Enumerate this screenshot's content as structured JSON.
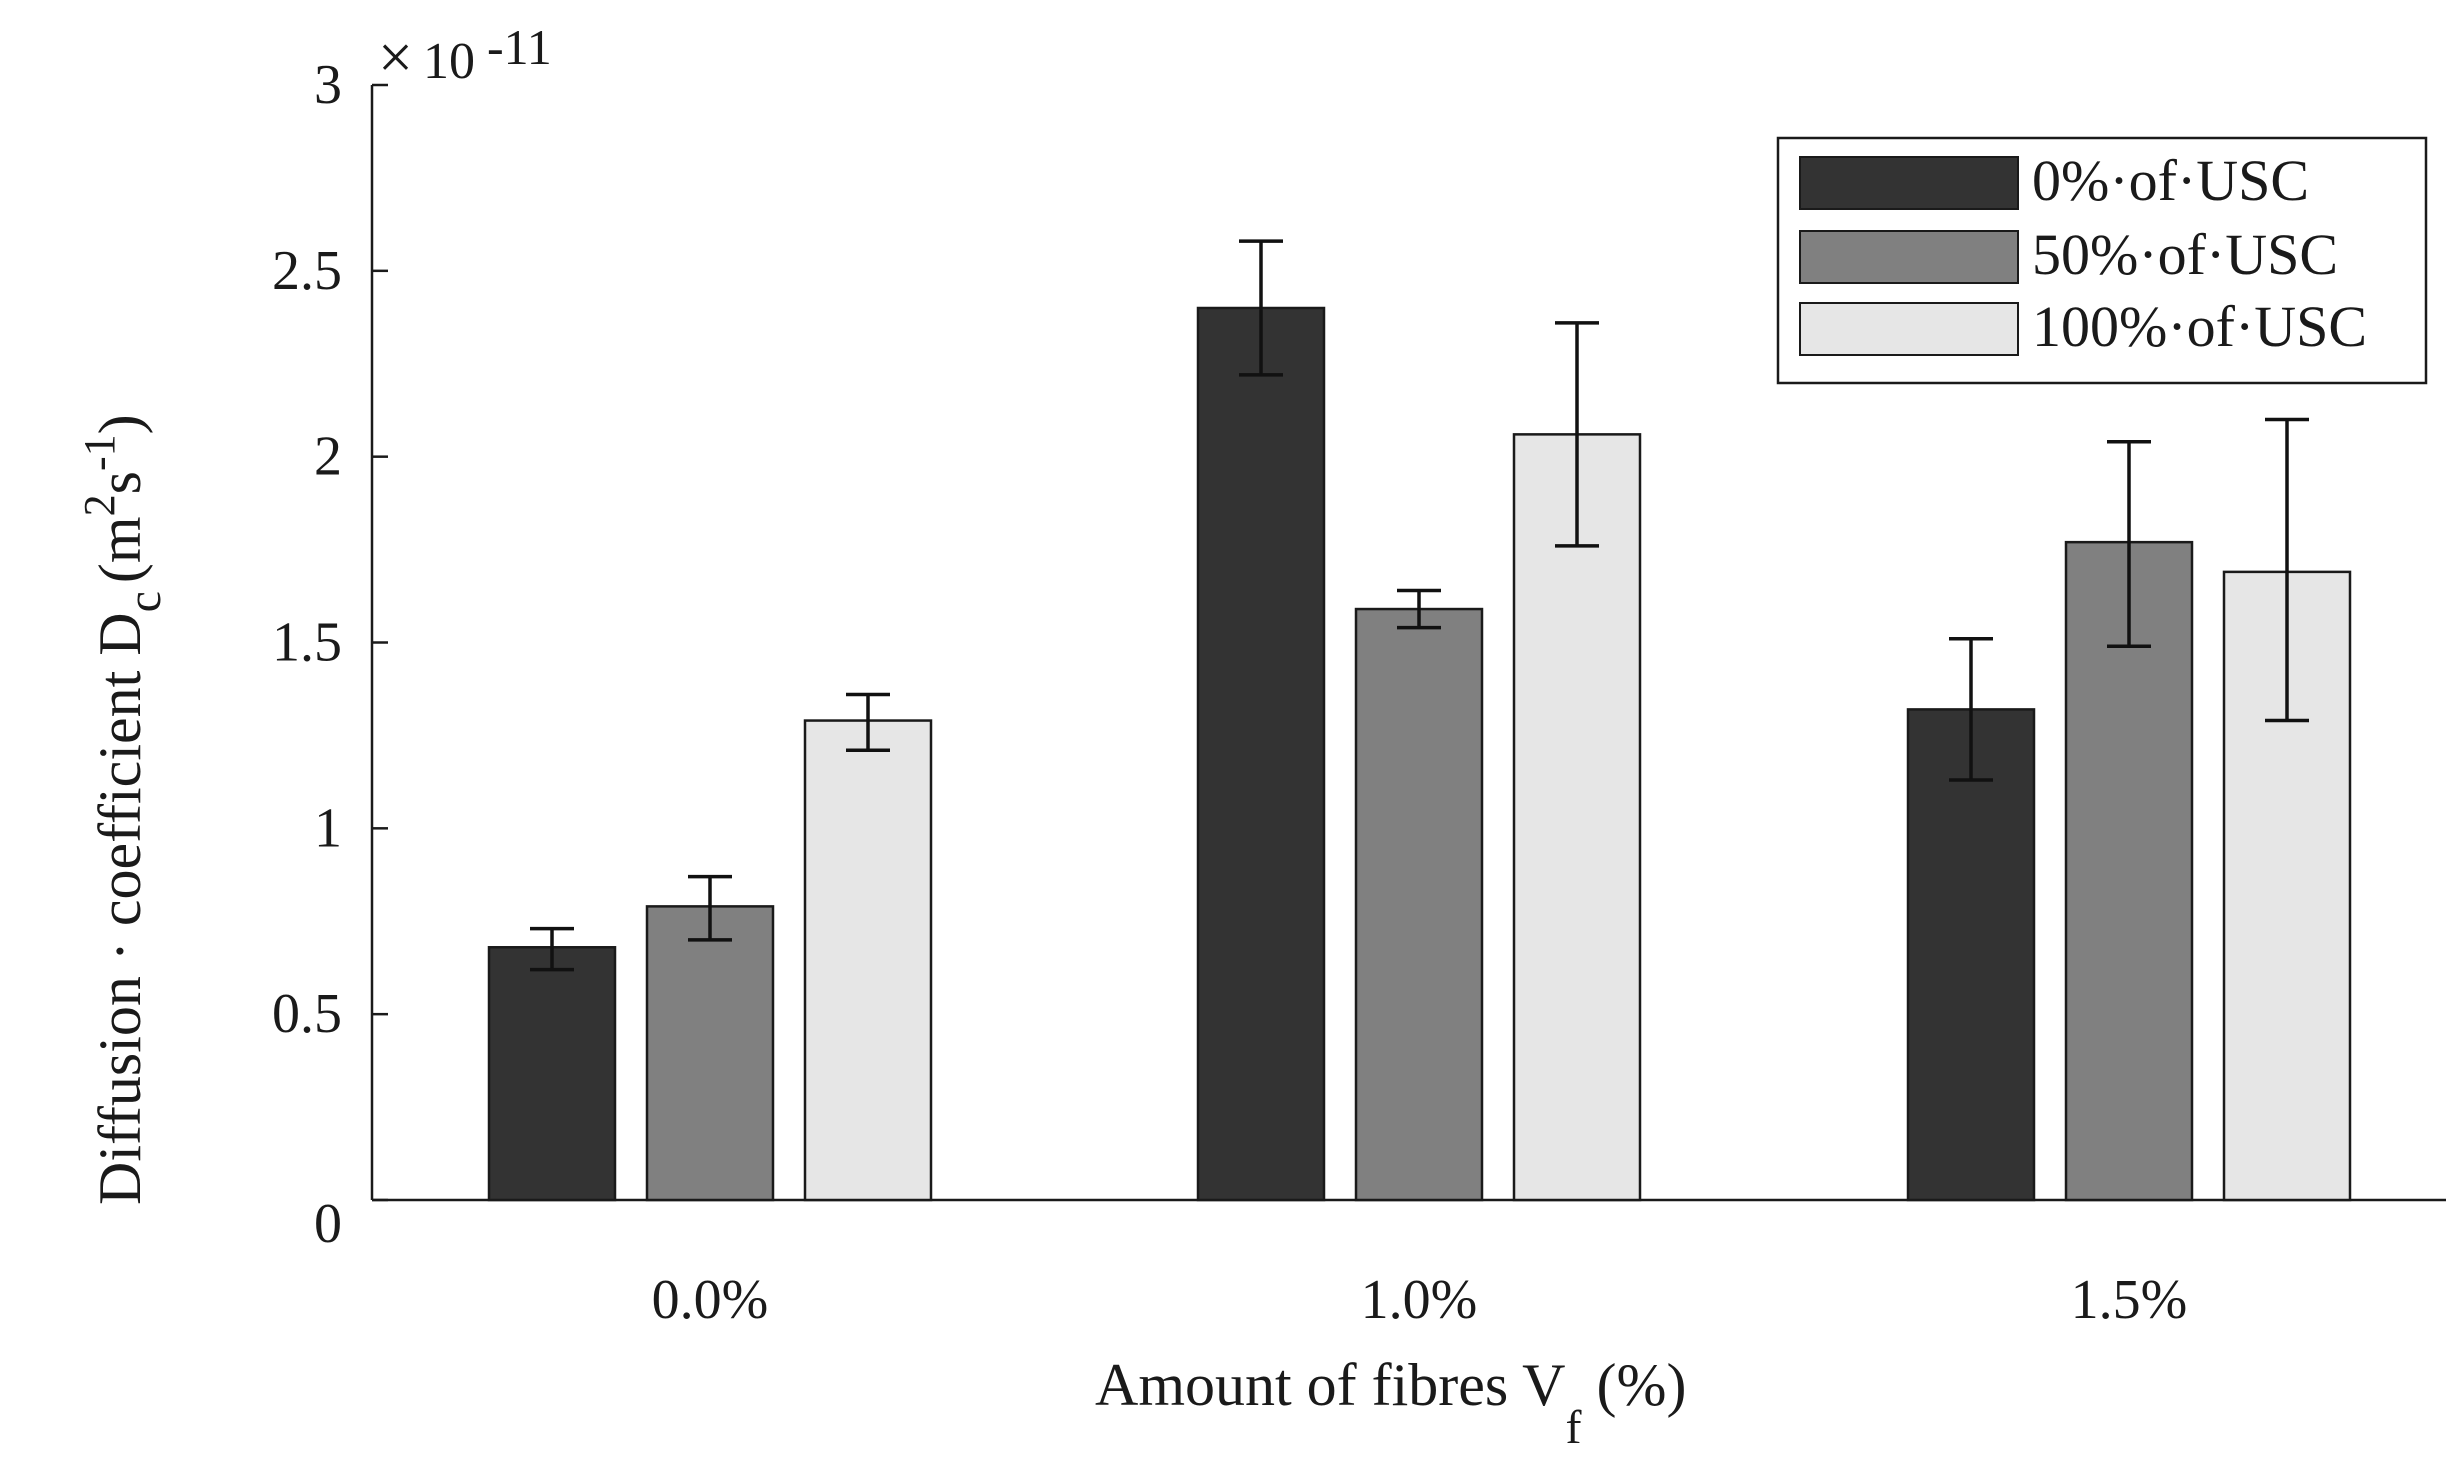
{
  "chart_data": {
    "type": "bar",
    "title": "",
    "xlabel": "Amount of fibres V",
    "xlabel_sub": "f",
    "xlabel_suffix": " (%)",
    "ylabel": "Diffusion · coefficient D",
    "ylabel_sub": "c",
    "ylabel_unit_open": "(m",
    "ylabel_unit_sq": "2",
    "ylabel_unit_s": "s",
    "ylabel_unit_neg1": "-1",
    "ylabel_unit_close": ")",
    "y_multiplier_symbol": "×",
    "y_multiplier_base": "10",
    "y_multiplier_exp": "-11",
    "ylim": [
      0,
      3
    ],
    "yticks": [
      0,
      0.5,
      1,
      1.5,
      2,
      2.5,
      3
    ],
    "ytick_labels": [
      "0",
      "0.5",
      "1",
      "1.5",
      "2",
      "2.5",
      "3"
    ],
    "categories": [
      "0.0%",
      "1.0%",
      "1.5%"
    ],
    "legend_position": "top-right",
    "grid": false,
    "series": [
      {
        "name": "0%·of·USC",
        "color": "#333333",
        "values": [
          0.68,
          2.4,
          1.32
        ],
        "err_low": [
          0.62,
          2.22,
          1.13
        ],
        "err_high": [
          0.73,
          2.58,
          1.51
        ]
      },
      {
        "name": "50%·of·USC",
        "color": "#808080",
        "values": [
          0.79,
          1.59,
          1.77
        ],
        "err_low": [
          0.7,
          1.54,
          1.49
        ],
        "err_high": [
          0.87,
          1.64,
          2.04
        ]
      },
      {
        "name": "100%·of·USC",
        "color": "#e6e6e6",
        "values": [
          1.29,
          2.06,
          1.69
        ],
        "err_low": [
          1.21,
          1.76,
          1.29
        ],
        "err_high": [
          1.36,
          2.36,
          2.1
        ]
      }
    ]
  }
}
